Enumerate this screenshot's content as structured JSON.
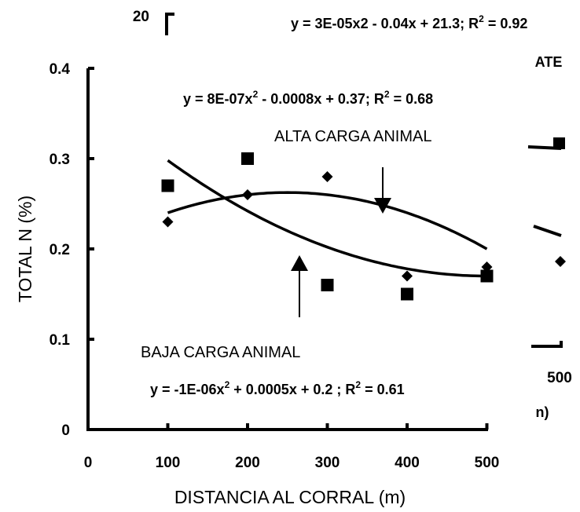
{
  "chart_data": {
    "type": "scatter",
    "xlabel": "DISTANCIA AL CORRAL (m)",
    "ylabel": "TOTAL N (%)",
    "xlim": [
      0,
      500
    ],
    "ylim": [
      0,
      0.4
    ],
    "x_ticks": [
      "0",
      "100",
      "200",
      "300",
      "400",
      "500"
    ],
    "y_ticks": [
      "0",
      "0.1",
      "0.2",
      "0.3",
      "0.4"
    ],
    "grid": false,
    "series": [
      {
        "marker": "diamond",
        "points": [
          {
            "x": 100,
            "y": 0.23
          },
          {
            "x": 200,
            "y": 0.26
          },
          {
            "x": 300,
            "y": 0.28
          },
          {
            "x": 400,
            "y": 0.17
          },
          {
            "x": 500,
            "y": 0.18
          }
        ],
        "trend": {
          "a": -1e-06,
          "b": 0.0005,
          "c": 0.2
        }
      },
      {
        "marker": "square",
        "points": [
          {
            "x": 100,
            "y": 0.27
          },
          {
            "x": 200,
            "y": 0.3
          },
          {
            "x": 300,
            "y": 0.16
          },
          {
            "x": 400,
            "y": 0.15
          },
          {
            "x": 500,
            "y": 0.17
          }
        ],
        "trend": {
          "a": 8e-07,
          "b": -0.0008,
          "c": 0.37
        }
      }
    ],
    "annotations": {
      "alta_label": "ALTA CARGA ANIMAL",
      "baja_label": "BAJA CARGA ANIMAL",
      "eq_alta_a": "y = 8E-07x",
      "eq_alta_b": " - 0.0008x + 0.37; R",
      "eq_alta_c": " = 0.68",
      "eq_baja_a": "y = -1E-06x",
      "eq_baja_b": " + 0.0005x + 0.2 ; R",
      "eq_baja_c": " = 0.61",
      "sup2": "2"
    },
    "background_fragments": {
      "top_tick": "20",
      "top_eq_a": "y = 3E-05x2 - 0.04x + 21.3; R",
      "top_eq_b": " = 0.92",
      "sup2": "2",
      "ate": "ATE",
      "five_hundred": "500",
      "n_paren": "n)"
    }
  }
}
